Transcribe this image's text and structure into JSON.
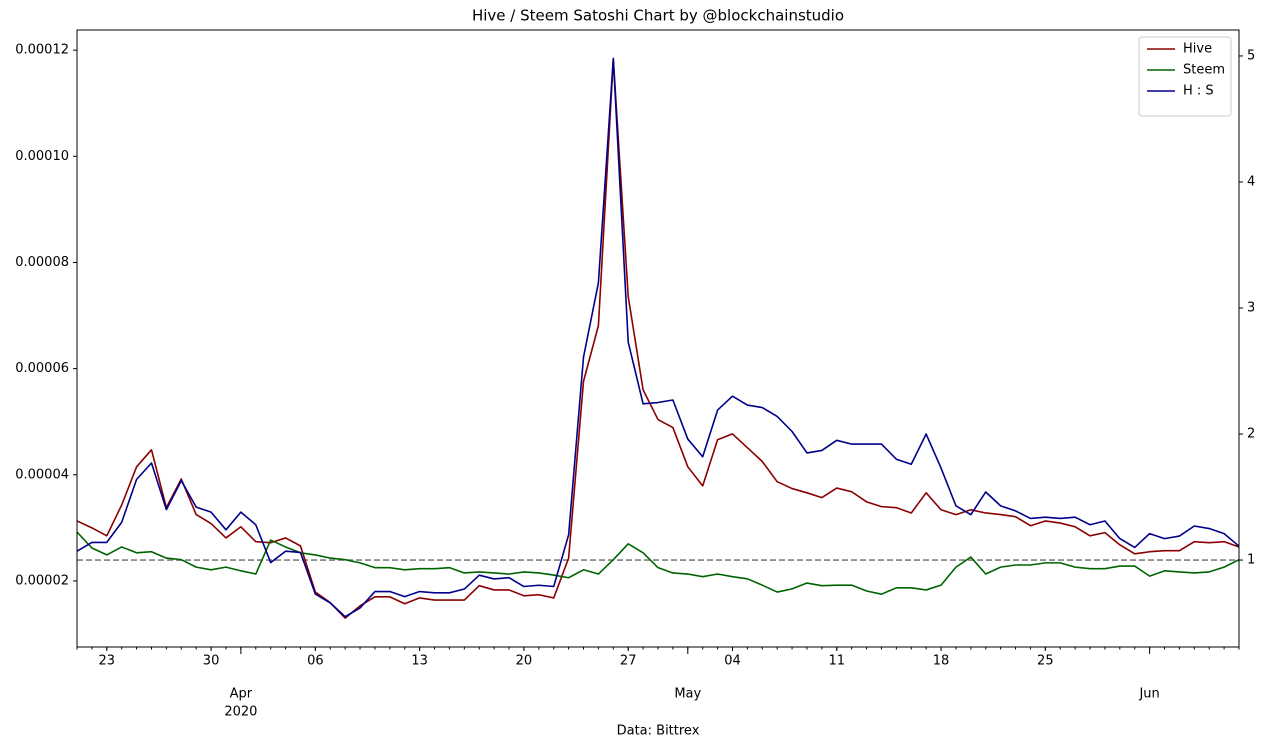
{
  "chart_data": {
    "type": "line",
    "title": "Hive / Steem Satoshi Chart by @blockchainstudio",
    "xlabel": "Data: Bittrex",
    "x": [
      "2020-03-21",
      "2020-03-22",
      "2020-03-23",
      "2020-03-24",
      "2020-03-25",
      "2020-03-26",
      "2020-03-27",
      "2020-03-28",
      "2020-03-29",
      "2020-03-30",
      "2020-03-31",
      "2020-04-01",
      "2020-04-02",
      "2020-04-03",
      "2020-04-04",
      "2020-04-05",
      "2020-04-06",
      "2020-04-07",
      "2020-04-08",
      "2020-04-09",
      "2020-04-10",
      "2020-04-11",
      "2020-04-12",
      "2020-04-13",
      "2020-04-14",
      "2020-04-15",
      "2020-04-16",
      "2020-04-17",
      "2020-04-18",
      "2020-04-19",
      "2020-04-20",
      "2020-04-21",
      "2020-04-22",
      "2020-04-23",
      "2020-04-24",
      "2020-04-25",
      "2020-04-26",
      "2020-04-27",
      "2020-04-28",
      "2020-04-29",
      "2020-04-30",
      "2020-05-01",
      "2020-05-02",
      "2020-05-03",
      "2020-05-04",
      "2020-05-05",
      "2020-05-06",
      "2020-05-07",
      "2020-05-08",
      "2020-05-09",
      "2020-05-10",
      "2020-05-11",
      "2020-05-12",
      "2020-05-13",
      "2020-05-14",
      "2020-05-15",
      "2020-05-16",
      "2020-05-17",
      "2020-05-18",
      "2020-05-19",
      "2020-05-20",
      "2020-05-21",
      "2020-05-22",
      "2020-05-23",
      "2020-05-24",
      "2020-05-25",
      "2020-05-26",
      "2020-05-27",
      "2020-05-28",
      "2020-05-29",
      "2020-05-30",
      "2020-05-31",
      "2020-06-01",
      "2020-06-02",
      "2020-06-03",
      "2020-06-04",
      "2020-06-05",
      "2020-06-06",
      "2020-06-07"
    ],
    "series": [
      {
        "name": "Hive",
        "color": "#8b0000",
        "axis": "y",
        "values": [
          3.13e-05,
          3e-05,
          2.85e-05,
          3.43e-05,
          4.15e-05,
          4.47e-05,
          3.38e-05,
          3.92e-05,
          3.25e-05,
          3.08e-05,
          2.81e-05,
          3.02e-05,
          2.74e-05,
          2.72e-05,
          2.81e-05,
          2.66e-05,
          1.79e-05,
          1.59e-05,
          1.3e-05,
          1.53e-05,
          1.7e-05,
          1.7e-05,
          1.57e-05,
          1.68e-05,
          1.64e-05,
          1.64e-05,
          1.64e-05,
          1.91e-05,
          1.83e-05,
          1.83e-05,
          1.72e-05,
          1.74e-05,
          1.68e-05,
          2.43e-05,
          5.76e-05,
          6.81e-05,
          0.0001183,
          7.36e-05,
          5.6e-05,
          5.04e-05,
          4.89e-05,
          4.15e-05,
          3.79e-05,
          4.66e-05,
          4.77e-05,
          4.51e-05,
          4.25e-05,
          3.87e-05,
          3.74e-05,
          3.66e-05,
          3.57e-05,
          3.75e-05,
          3.68e-05,
          3.49e-05,
          3.4e-05,
          3.38e-05,
          3.28e-05,
          3.66e-05,
          3.34e-05,
          3.25e-05,
          3.34e-05,
          3.28e-05,
          3.25e-05,
          3.21e-05,
          3.04e-05,
          3.13e-05,
          3.09e-05,
          3.02e-05,
          2.85e-05,
          2.91e-05,
          2.68e-05,
          2.51e-05,
          2.55e-05,
          2.57e-05,
          2.57e-05,
          2.74e-05,
          2.72e-05,
          2.74e-05,
          2.64e-05
        ]
      },
      {
        "name": "Steem",
        "color": "#006400",
        "axis": "y",
        "values": [
          2.92e-05,
          2.62e-05,
          2.49e-05,
          2.64e-05,
          2.53e-05,
          2.55e-05,
          2.43e-05,
          2.4e-05,
          2.26e-05,
          2.21e-05,
          2.26e-05,
          2.19e-05,
          2.13e-05,
          2.77e-05,
          2.64e-05,
          2.53e-05,
          2.49e-05,
          2.43e-05,
          2.4e-05,
          2.34e-05,
          2.25e-05,
          2.25e-05,
          2.21e-05,
          2.23e-05,
          2.23e-05,
          2.25e-05,
          2.15e-05,
          2.17e-05,
          2.15e-05,
          2.13e-05,
          2.17e-05,
          2.15e-05,
          2.11e-05,
          2.06e-05,
          2.21e-05,
          2.13e-05,
          2.4e-05,
          2.7e-05,
          2.53e-05,
          2.25e-05,
          2.15e-05,
          2.13e-05,
          2.08e-05,
          2.13e-05,
          2.08e-05,
          2.04e-05,
          1.92e-05,
          1.79e-05,
          1.85e-05,
          1.96e-05,
          1.91e-05,
          1.92e-05,
          1.92e-05,
          1.81e-05,
          1.75e-05,
          1.87e-05,
          1.87e-05,
          1.83e-05,
          1.92e-05,
          2.26e-05,
          2.45e-05,
          2.13e-05,
          2.26e-05,
          2.3e-05,
          2.3e-05,
          2.34e-05,
          2.34e-05,
          2.26e-05,
          2.23e-05,
          2.23e-05,
          2.28e-05,
          2.28e-05,
          2.09e-05,
          2.19e-05,
          2.17e-05,
          2.15e-05,
          2.17e-05,
          2.26e-05,
          2.4e-05
        ]
      },
      {
        "name": "H : S",
        "color": "#00008b",
        "axis": "y2",
        "values": [
          1.07,
          1.14,
          1.14,
          1.3,
          1.64,
          1.77,
          1.4,
          1.63,
          1.42,
          1.38,
          1.24,
          1.38,
          1.28,
          0.98,
          1.07,
          1.06,
          0.73,
          0.66,
          0.55,
          0.62,
          0.75,
          0.75,
          0.71,
          0.75,
          0.74,
          0.74,
          0.77,
          0.88,
          0.85,
          0.86,
          0.79,
          0.8,
          0.79,
          1.2,
          2.61,
          3.2,
          4.98,
          2.73,
          2.24,
          2.25,
          2.27,
          1.96,
          1.82,
          2.19,
          2.3,
          2.23,
          2.21,
          2.14,
          2.02,
          1.85,
          1.87,
          1.95,
          1.92,
          1.92,
          1.92,
          1.8,
          1.76,
          2,
          1.73,
          1.43,
          1.36,
          1.54,
          1.43,
          1.39,
          1.33,
          1.34,
          1.33,
          1.34,
          1.28,
          1.31,
          1.17,
          1.1,
          1.21,
          1.17,
          1.19,
          1.27,
          1.25,
          1.21,
          1.11
        ]
      }
    ],
    "reference_line": {
      "value": 1,
      "axis": "y2",
      "color": "#808080",
      "style": "dashed"
    },
    "xlim": [
      "2020-03-21",
      "2020-06-07"
    ],
    "xticks": [
      {
        "value": "2020-03-23",
        "label": "23"
      },
      {
        "value": "2020-03-30",
        "label": "30"
      },
      {
        "value": "2020-04-06",
        "label": "06"
      },
      {
        "value": "2020-04-13",
        "label": "13"
      },
      {
        "value": "2020-04-20",
        "label": "20"
      },
      {
        "value": "2020-04-27",
        "label": "27"
      },
      {
        "value": "2020-05-04",
        "label": "04"
      },
      {
        "value": "2020-05-11",
        "label": "11"
      },
      {
        "value": "2020-05-18",
        "label": "18"
      },
      {
        "value": "2020-05-25",
        "label": "25"
      }
    ],
    "xticks_major": [
      {
        "value": "2020-04-01",
        "label": "Apr",
        "sublabel": "2020"
      },
      {
        "value": "2020-05-01",
        "label": "May"
      },
      {
        "value": "2020-06-01",
        "label": "Jun"
      }
    ],
    "ylim": [
      7.55e-06,
      0.0001238
    ],
    "yticks": [
      2e-05,
      4e-05,
      6e-05,
      8e-05,
      {
        "value": 0.0001,
        "label": "0.00010"
      },
      0.00012
    ],
    "y2lim": [
      0.31,
      5.206
    ],
    "y2ticks": [
      1,
      2,
      3,
      4,
      5
    ],
    "legend": "upper right"
  }
}
